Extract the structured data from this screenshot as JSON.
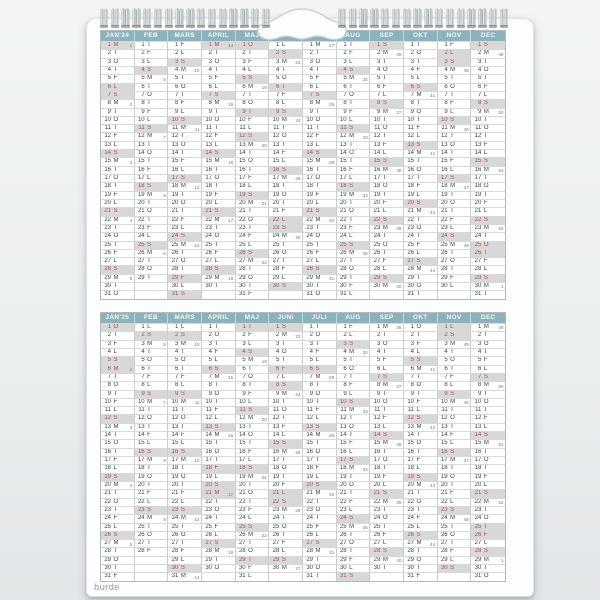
{
  "page": {
    "brand": "burde"
  },
  "weekday_letters": [
    "M",
    "T",
    "O",
    "T",
    "F",
    "L",
    "S"
  ],
  "colors": {
    "month_header_bg": "#8ab3bd",
    "month_header_text": "#f6fafb",
    "day_text": "#3f4345",
    "red_day_text": "#a84b51",
    "red_day_bg": "#d8d8d8",
    "grid_line": "#c9cdce",
    "page_bg": "#fcfdfd",
    "brand_text": "#9aa0a2"
  },
  "calendars": [
    {
      "position": "top",
      "months": [
        {
          "label": "JAN'24",
          "len": 31,
          "start": 0,
          "reds": [
            1,
            6,
            7,
            14,
            21,
            28
          ],
          "weeks": [
            1,
            2,
            3,
            4,
            5
          ]
        },
        {
          "label": "FEB",
          "len": 29,
          "start": 3,
          "reds": [
            4,
            11,
            18,
            25
          ],
          "weeks": [
            6,
            7,
            8,
            9
          ]
        },
        {
          "label": "MARS",
          "len": 31,
          "start": 4,
          "reds": [
            3,
            10,
            17,
            24,
            29,
            31
          ],
          "weeks": [
            10,
            11,
            12,
            13
          ]
        },
        {
          "label": "APRIL",
          "len": 30,
          "start": 0,
          "reds": [
            1,
            7,
            14,
            21,
            28
          ],
          "weeks": [
            14,
            15,
            16,
            17,
            18
          ]
        },
        {
          "label": "MAJ",
          "len": 31,
          "start": 2,
          "reds": [
            1,
            5,
            9,
            12,
            19,
            26
          ],
          "weeks": [
            19,
            20,
            21,
            22
          ]
        },
        {
          "label": "JUNI",
          "len": 30,
          "start": 5,
          "reds": [
            2,
            6,
            9,
            16,
            22,
            23,
            30
          ],
          "weeks": [
            23,
            24,
            25,
            26
          ]
        },
        {
          "label": "JULI",
          "len": 31,
          "start": 0,
          "reds": [
            7,
            14,
            21,
            28
          ],
          "weeks": [
            27,
            28,
            29,
            30,
            31
          ]
        },
        {
          "label": "AUG",
          "len": 31,
          "start": 3,
          "reds": [
            4,
            11,
            18,
            25
          ],
          "weeks": [
            32,
            33,
            34,
            35
          ]
        },
        {
          "label": "SEP",
          "len": 30,
          "start": 6,
          "reds": [
            1,
            8,
            15,
            22,
            29
          ],
          "weeks": [
            36,
            37,
            38,
            39,
            40
          ]
        },
        {
          "label": "OKT",
          "len": 31,
          "start": 1,
          "reds": [
            6,
            13,
            20,
            27
          ],
          "weeks": [
            41,
            42,
            43,
            44
          ]
        },
        {
          "label": "NOV",
          "len": 30,
          "start": 4,
          "reds": [
            2,
            3,
            10,
            17,
            24
          ],
          "weeks": [
            45,
            46,
            47,
            48
          ]
        },
        {
          "label": "DEC",
          "len": 31,
          "start": 6,
          "reds": [
            1,
            8,
            15,
            22,
            25,
            26,
            29
          ],
          "weeks": [
            49,
            50,
            51,
            52,
            1
          ]
        }
      ]
    },
    {
      "position": "bottom",
      "months": [
        {
          "label": "JAN'25",
          "len": 31,
          "start": 2,
          "reds": [
            1,
            5,
            6,
            12,
            19,
            26
          ],
          "weeks": [
            2,
            3,
            4,
            5
          ]
        },
        {
          "label": "FEB",
          "len": 28,
          "start": 5,
          "reds": [
            2,
            9,
            16,
            23
          ],
          "weeks": [
            6,
            7,
            8,
            9
          ]
        },
        {
          "label": "MARS",
          "len": 31,
          "start": 5,
          "reds": [
            2,
            9,
            16,
            23,
            30
          ],
          "weeks": [
            10,
            11,
            12,
            13,
            14
          ]
        },
        {
          "label": "APRIL",
          "len": 30,
          "start": 1,
          "reds": [
            6,
            13,
            18,
            20,
            21,
            27
          ],
          "weeks": [
            15,
            16,
            17,
            18
          ]
        },
        {
          "label": "MAJ",
          "len": 31,
          "start": 3,
          "reds": [
            1,
            4,
            11,
            18,
            25,
            29
          ],
          "weeks": [
            19,
            20,
            21,
            22
          ]
        },
        {
          "label": "JUNI",
          "len": 30,
          "start": 6,
          "reds": [
            1,
            6,
            8,
            15,
            21,
            22,
            29
          ],
          "weeks": [
            23,
            24,
            25,
            26,
            27
          ]
        },
        {
          "label": "JULI",
          "len": 31,
          "start": 1,
          "reds": [
            6,
            13,
            20,
            27
          ],
          "weeks": [
            28,
            29,
            30,
            31
          ]
        },
        {
          "label": "AUG",
          "len": 31,
          "start": 4,
          "reds": [
            3,
            10,
            17,
            24,
            31
          ],
          "weeks": [
            32,
            33,
            34,
            35
          ]
        },
        {
          "label": "SEP",
          "len": 30,
          "start": 0,
          "reds": [
            7,
            14,
            21,
            28
          ],
          "weeks": [
            36,
            37,
            38,
            39,
            40
          ]
        },
        {
          "label": "OKT",
          "len": 31,
          "start": 2,
          "reds": [
            5,
            12,
            19,
            26
          ],
          "weeks": [
            41,
            42,
            43,
            44
          ]
        },
        {
          "label": "NOV",
          "len": 30,
          "start": 5,
          "reds": [
            1,
            2,
            9,
            16,
            23,
            30
          ],
          "weeks": [
            45,
            46,
            47,
            48
          ]
        },
        {
          "label": "DEC",
          "len": 31,
          "start": 0,
          "reds": [
            7,
            14,
            21,
            25,
            26,
            28
          ],
          "weeks": [
            49,
            50,
            51,
            52,
            1
          ]
        }
      ]
    }
  ]
}
